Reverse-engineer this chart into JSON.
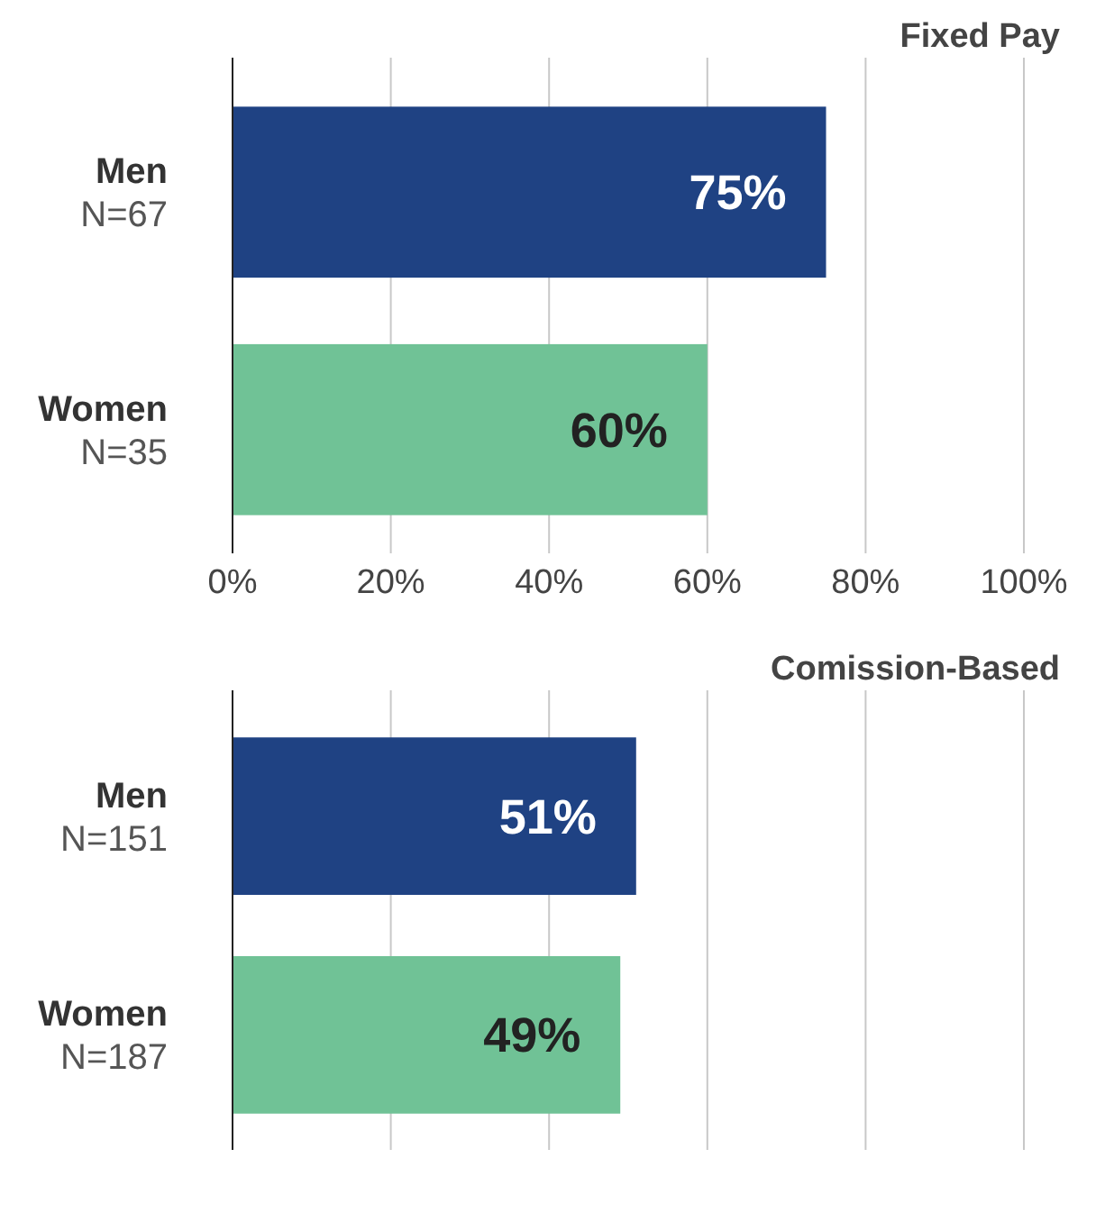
{
  "chart_data": [
    {
      "type": "bar",
      "orientation": "horizontal",
      "title": "Fixed Pay",
      "categories": [
        "Men\nN=67",
        "Women\nN=35"
      ],
      "values": [
        75,
        60
      ],
      "colors": [
        "#1f4283",
        "#70c296"
      ],
      "value_labels": [
        "75%",
        "60%"
      ],
      "xlim": [
        0,
        100
      ],
      "xticks": [
        {
          "value": 0,
          "label": "0%"
        },
        {
          "value": 20,
          "label": "20%"
        },
        {
          "value": 40,
          "label": "40%"
        },
        {
          "value": 60,
          "label": "60%"
        },
        {
          "value": 80,
          "label": "80%"
        },
        {
          "value": 100,
          "label": "100%"
        }
      ],
      "grid": "x"
    },
    {
      "type": "bar",
      "orientation": "horizontal",
      "title": "Comission-Based",
      "categories": [
        "Men\nN=151",
        "Women\nN=187"
      ],
      "values": [
        51,
        49
      ],
      "colors": [
        "#1f4283",
        "#70c296"
      ],
      "value_labels": [
        "51%",
        "49%"
      ],
      "xlim": [
        0,
        100
      ],
      "xticks": [
        0,
        20,
        40,
        60,
        80,
        100
      ],
      "grid": "x",
      "tick_labels": "y"
    }
  ]
}
